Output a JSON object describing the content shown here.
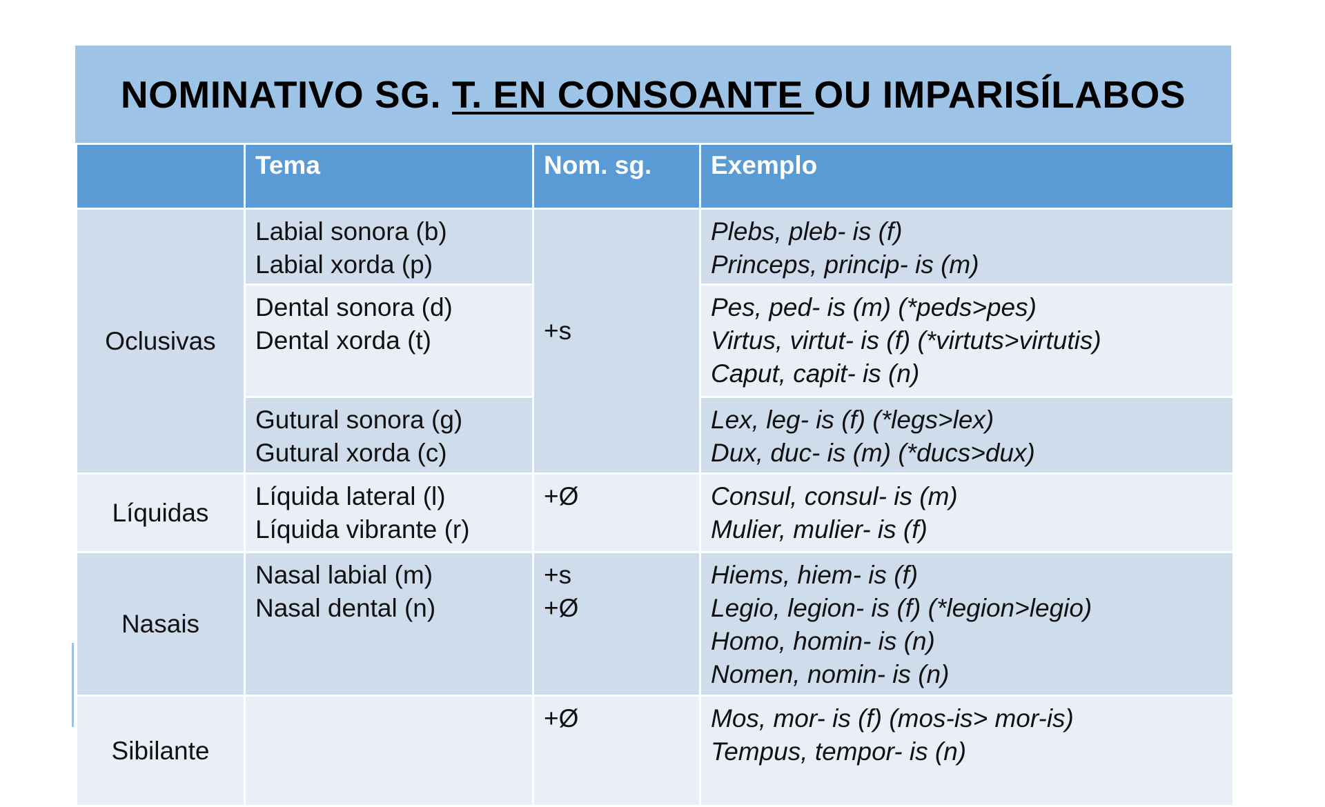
{
  "title": {
    "part1": "NOMINATIVO SG. ",
    "underlined": "T. EN CONSOANTE ",
    "part2": "OU IMPARISÍLABOS"
  },
  "headers": [
    "",
    "Tema",
    "Nom. sg.",
    "Exemplo"
  ],
  "rows": {
    "oclusivas": {
      "label": "Oclusivas",
      "nom": "+s",
      "sub": [
        {
          "tema": [
            "Labial sonora (b)",
            "Labial xorda (p)"
          ],
          "exemplo": [
            "Plebs, pleb- is (f)",
            "Princeps, princip- is (m)"
          ]
        },
        {
          "tema": [
            "Dental sonora (d)",
            "Dental xorda (t)"
          ],
          "exemplo": [
            "Pes, ped- is (m) (*peds>pes)",
            "Virtus, virtut- is (f) (*virtuts>virtutis)",
            "Caput, capit- is (n)"
          ]
        },
        {
          "tema": [
            "Gutural sonora (g)",
            "Gutural xorda (c)"
          ],
          "exemplo": [
            "Lex, leg- is (f) (*legs>lex)",
            "Dux, duc- is (m) (*ducs>dux)"
          ]
        }
      ]
    },
    "liquidas": {
      "label": "Líquidas",
      "tema": [
        "Líquida lateral (l)",
        "Líquida vibrante (r)"
      ],
      "nom": [
        "+Ø"
      ],
      "exemplo": [
        "Consul, consul- is (m)",
        "Mulier, mulier- is (f)"
      ]
    },
    "nasais": {
      "label": "Nasais",
      "tema": [
        "Nasal labial (m)",
        "Nasal dental (n)"
      ],
      "nom": [
        "+s",
        "+Ø"
      ],
      "exemplo": [
        "Hiems, hiem- is (f)",
        "Legio, legion- is (f) (*legion>legio)",
        "Homo, homin- is (n)",
        "Nomen, nomin- is (n)"
      ]
    },
    "sibilante": {
      "label": "Sibilante",
      "tema": [],
      "nom": [
        "+Ø"
      ],
      "exemplo": [
        "Mos, mor- is (f) (mos-is> mor-is)",
        "Tempus, tempor- is (n)"
      ]
    }
  },
  "colors": {
    "title_band": "#9dc3e6",
    "header": "#5b9bd5",
    "row_dark": "#cfdcec",
    "row_light": "#e9eef7"
  }
}
